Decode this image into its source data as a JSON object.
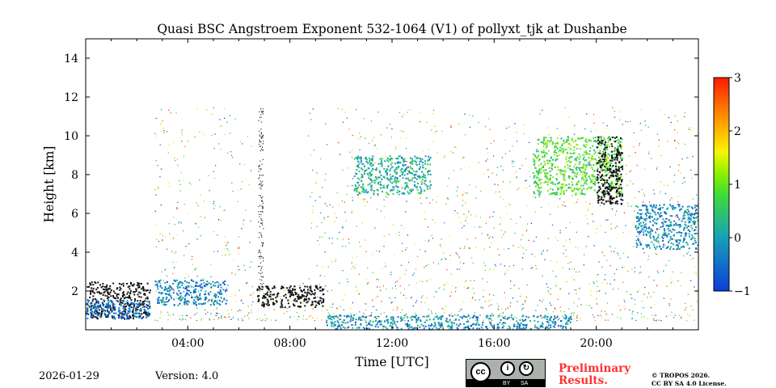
{
  "chart_data": {
    "type": "heatmap",
    "title": "Quasi BSC Angstroem Exponent 532-1064 (V1) of pollyxt_tjk at Dushanbe",
    "xlabel": "Time [UTC]",
    "ylabel": "Height [km]",
    "xlim_hours": [
      0,
      24
    ],
    "ylim": [
      0,
      15
    ],
    "xticks": [
      {
        "v": 4,
        "label": "04:00"
      },
      {
        "v": 8,
        "label": "08:00"
      },
      {
        "v": 12,
        "label": "12:00"
      },
      {
        "v": 16,
        "label": "16:00"
      },
      {
        "v": 20,
        "label": "20:00"
      }
    ],
    "yticks": [
      {
        "v": 2,
        "label": "2"
      },
      {
        "v": 4,
        "label": "4"
      },
      {
        "v": 6,
        "label": "6"
      },
      {
        "v": 8,
        "label": "8"
      },
      {
        "v": 10,
        "label": "10"
      },
      {
        "v": 12,
        "label": "12"
      },
      {
        "v": 14,
        "label": "14"
      }
    ],
    "colorbar": {
      "min": -1,
      "max": 3,
      "ticks": [
        {
          "v": 3,
          "label": "3"
        },
        {
          "v": 2,
          "label": "2"
        },
        {
          "v": 1,
          "label": "1"
        },
        {
          "v": 0,
          "label": "0"
        },
        {
          "v": -1,
          "label": "−1"
        }
      ]
    },
    "layers": [
      {
        "t0": 0,
        "t1": 2.5,
        "h0": 0.6,
        "h1": 2.5,
        "value": "black"
      },
      {
        "t0": 0,
        "t1": 2.5,
        "h0": 0.6,
        "h1": 1.6,
        "value": -0.5
      },
      {
        "t0": 2.7,
        "t1": 5.5,
        "h0": 1.3,
        "h1": 2.6,
        "value": -0.3
      },
      {
        "t0": 6.7,
        "t1": 9.3,
        "h0": 1.2,
        "h1": 2.3,
        "value": "black"
      },
      {
        "t0": 10.5,
        "t1": 13.5,
        "h0": 7,
        "h1": 9,
        "value": 0.2
      },
      {
        "t0": 17.5,
        "t1": 21,
        "h0": 7,
        "h1": 10,
        "value": 0.8
      },
      {
        "t0": 20,
        "t1": 21,
        "h0": 6.5,
        "h1": 10,
        "value": "black"
      },
      {
        "t0": 21.5,
        "t1": 24,
        "h0": 4.2,
        "h1": 6.5,
        "value": -0.2
      },
      {
        "t0": 9.4,
        "t1": 19,
        "h0": 0,
        "h1": 0.8,
        "value": -0.2
      }
    ]
  },
  "footer": {
    "date": "2026-01-29",
    "version": "Version: 4.0",
    "preliminary_line1": "Preliminary",
    "preliminary_line2": "Results.",
    "copyright_line1": "© TROPOS 2026.",
    "copyright_line2": "CC BY SA 4.0 License.",
    "cc_by": "BY",
    "cc_sa": "SA",
    "cc_text": "cc"
  }
}
